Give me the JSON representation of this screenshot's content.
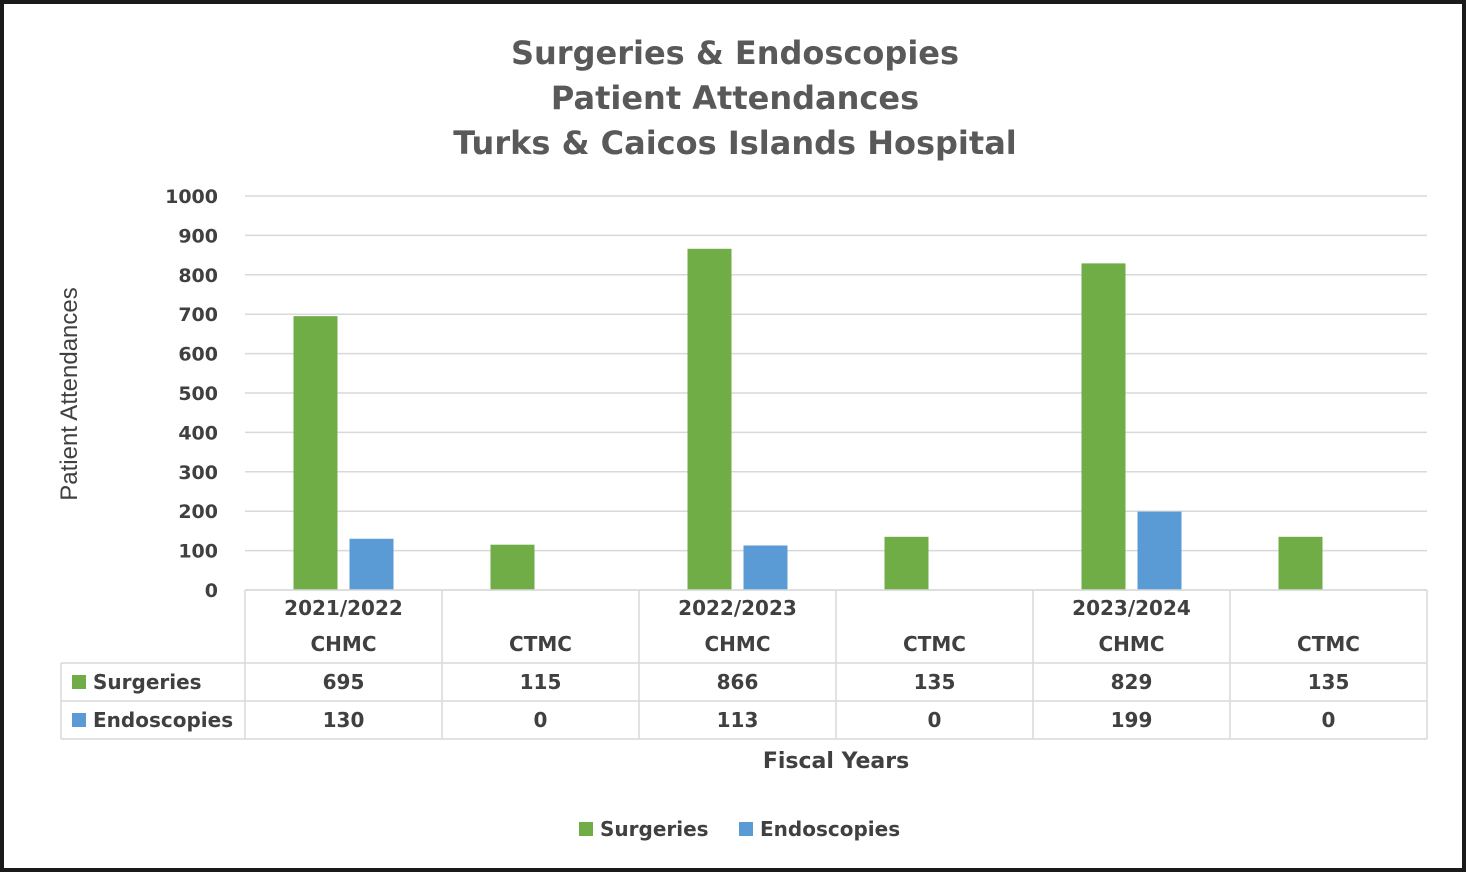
{
  "chart_data": {
    "type": "bar",
    "title_lines": [
      "Surgeries & Endoscopies",
      "Patient Attendances",
      "Turks & Caicos Islands Hospital"
    ],
    "ylabel": "Patient Attendances",
    "xlabel": "Fiscal Years",
    "ylim": [
      0,
      1000
    ],
    "y_ticks": [
      "0",
      "100",
      "200",
      "300",
      "400",
      "500",
      "600",
      "700",
      "800",
      "900",
      "1000"
    ],
    "groups": [
      {
        "label": "2021/2022",
        "categories": [
          "CHMC",
          "CTMC"
        ]
      },
      {
        "label": "2022/2023",
        "categories": [
          "CHMC",
          "CTMC"
        ]
      },
      {
        "label": "2023/2024",
        "categories": [
          "CHMC",
          "CTMC"
        ]
      }
    ],
    "categories": [
      "CHMC",
      "CTMC",
      "CHMC",
      "CTMC",
      "CHMC",
      "CTMC"
    ],
    "series": [
      {
        "name": "Surgeries",
        "color": "#70ad47",
        "values": [
          695,
          115,
          866,
          135,
          829,
          135
        ]
      },
      {
        "name": "Endoscopies",
        "color": "#5b9bd5",
        "values": [
          130,
          0,
          113,
          0,
          199,
          0
        ]
      }
    ],
    "data_table": {
      "rows": [
        {
          "name": "Surgeries",
          "cells": [
            "695",
            "115",
            "866",
            "135",
            "829",
            "135"
          ]
        },
        {
          "name": "Endoscopies",
          "cells": [
            "130",
            "0",
            "113",
            "0",
            "199",
            "0"
          ]
        }
      ]
    },
    "grid": true,
    "legend": {
      "position": "bottom",
      "items": [
        "Surgeries",
        "Endoscopies"
      ]
    }
  }
}
